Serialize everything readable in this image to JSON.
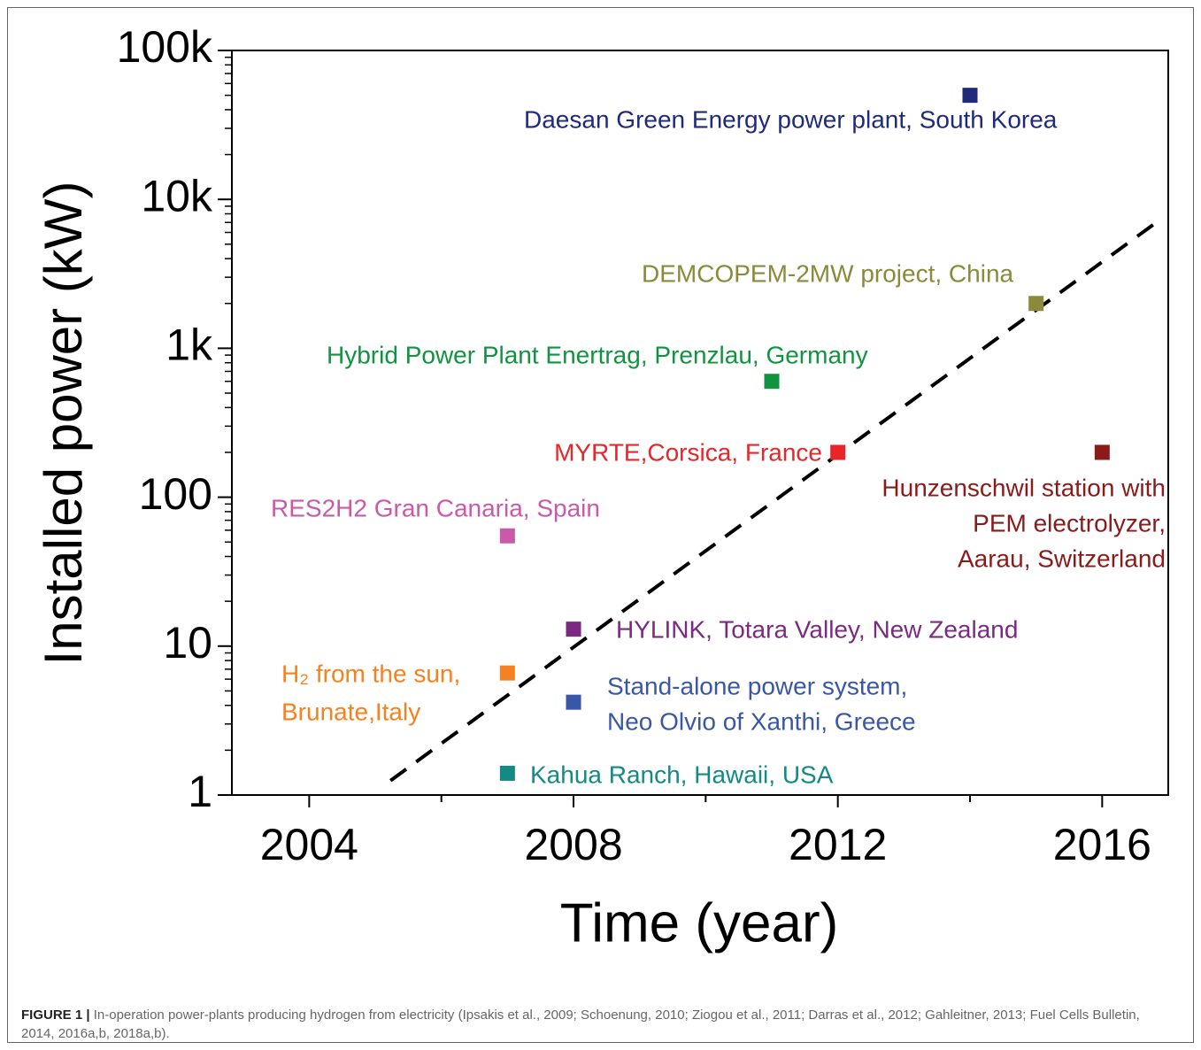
{
  "chart_data": {
    "type": "scatter",
    "xlabel": "Time (year)",
    "ylabel": "Installed power (kW)",
    "xlim": [
      2002.83,
      2017
    ],
    "xticks": [
      2004,
      2008,
      2012,
      2016
    ],
    "xminorticks": [
      2006,
      2010,
      2014
    ],
    "ylim": [
      1,
      100000
    ],
    "ylog": true,
    "yticks": [
      1,
      10,
      100,
      {
        "value": 1000,
        "label": "1k"
      },
      {
        "value": 10000,
        "label": "10k"
      },
      {
        "value": 100000,
        "label": "100k"
      }
    ],
    "series": [
      {
        "name": [
          "Daesan Green Energy power plant, South Korea"
        ],
        "color": "#1f2a7a",
        "x": [
          2014
        ],
        "values": [
          50000
        ]
      },
      {
        "name": [
          "DEMCOPEM-2MW project, China"
        ],
        "color": "#8a8a3a",
        "x": [
          2015
        ],
        "values": [
          2000
        ]
      },
      {
        "name": [
          "Hybrid Power Plant Enertrag, Prenzlau, Germany"
        ],
        "color": "#12933f",
        "x": [
          2011
        ],
        "values": [
          600
        ]
      },
      {
        "name": [
          "MYRTE,Corsica, France"
        ],
        "color": "#e8262a",
        "x": [
          2012
        ],
        "values": [
          200
        ]
      },
      {
        "name": [
          "Hunzenschwil station with",
          "PEM electrolyzer,",
          "Aarau, Switzerland"
        ],
        "color": "#8b1a1a",
        "x": [
          2016
        ],
        "values": [
          200
        ]
      },
      {
        "name": [
          "RES2H2 Gran Canaria, Spain"
        ],
        "color": "#c95aa8",
        "x": [
          2007
        ],
        "values": [
          55
        ]
      },
      {
        "name": [
          "HYLINK, Totara Valley, New Zealand"
        ],
        "color": "#7b2a82",
        "x": [
          2008
        ],
        "values": [
          13
        ]
      },
      {
        "name": [
          "H₂ from the sun,",
          "Brunate,Italy"
        ],
        "color": "#f58220",
        "x": [
          2007
        ],
        "values": [
          6.6
        ]
      },
      {
        "name": [
          "Stand-alone power system,",
          "Neo Olvio of Xanthi, Greece"
        ],
        "color": "#3a57a7",
        "x": [
          2008
        ],
        "values": [
          4.2
        ]
      },
      {
        "name": [
          "Kahua Ranch, Hawaii, USA"
        ],
        "color": "#138a86",
        "x": [
          2007
        ],
        "values": [
          1.4
        ]
      }
    ],
    "trend": {
      "x": [
        2005.23,
        2016.8
      ],
      "values": [
        1.25,
        6900
      ],
      "color": "#000000",
      "dashed": true
    }
  },
  "caption": {
    "label": "FIGURE 1 |",
    "text": "In-operation power-plants producing hydrogen from electricity (Ipsakis et al., 2009; Schoenung, 2010; Ziogou et al., 2011; Darras et al., 2012; Gahleitner, 2013; Fuel Cells Bulletin, 2014, 2016a,b, 2018a,b)."
  }
}
